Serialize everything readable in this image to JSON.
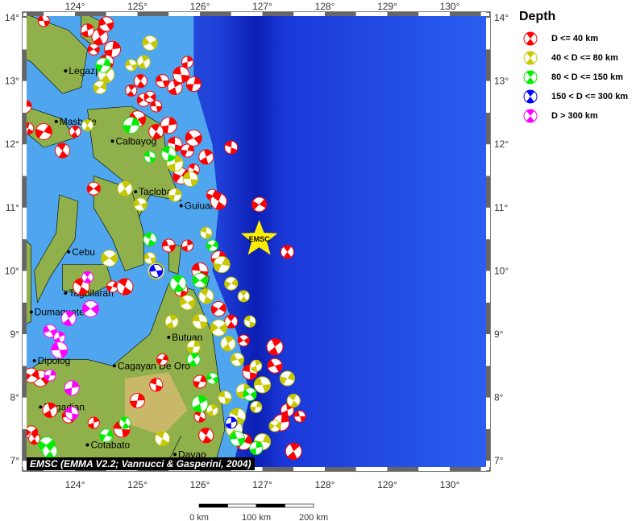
{
  "legend": {
    "title": "Depth",
    "items": [
      {
        "label": "D <= 40 km",
        "color": "#ff0000"
      },
      {
        "label": "40 < D <= 80 km",
        "color": "#c8c800"
      },
      {
        "label": "80 < D <= 150 km",
        "color": "#00ee00"
      },
      {
        "label": "150 < D <= 300 km",
        "color": "#0000ff"
      },
      {
        "label": "D > 300 km",
        "color": "#ff00ff"
      }
    ]
  },
  "credit": "EMSC (EMMA V2.2; Vannucci & Gasperini, 2004)",
  "axes": {
    "lon_ticks": [
      "124°",
      "125°",
      "126°",
      "127°",
      "128°",
      "129°",
      "130°"
    ],
    "lat_ticks": [
      "14°",
      "13°",
      "12°",
      "11°",
      "10°",
      "9°",
      "8°",
      "7°"
    ],
    "lon_values": [
      124,
      125,
      126,
      127,
      128,
      129,
      130
    ],
    "lat_values": [
      14,
      13,
      12,
      11,
      10,
      9,
      8,
      7
    ]
  },
  "scale_bar": {
    "labels": [
      "0 km",
      "100 km",
      "200 km"
    ]
  },
  "marker": {
    "label": "EMSC",
    "lon": 126.95,
    "lat": 10.5,
    "color": "#ffee00"
  },
  "cities": [
    {
      "name": "Legazpi",
      "lon": 123.85,
      "lat": 13.16
    },
    {
      "name": "Masbate",
      "lon": 123.7,
      "lat": 12.36
    },
    {
      "name": "Calbayog",
      "lon": 124.6,
      "lat": 12.05
    },
    {
      "name": "Tacloban",
      "lon": 124.97,
      "lat": 11.25
    },
    {
      "name": "Guiuan",
      "lon": 125.7,
      "lat": 11.03
    },
    {
      "name": "Cebu",
      "lon": 123.9,
      "lat": 10.3
    },
    {
      "name": "Tagbilaran",
      "lon": 123.85,
      "lat": 9.65
    },
    {
      "name": "Dumaguete",
      "lon": 123.3,
      "lat": 9.35
    },
    {
      "name": "Butuan",
      "lon": 125.5,
      "lat": 8.95
    },
    {
      "name": "Dipolog",
      "lon": 123.35,
      "lat": 8.58
    },
    {
      "name": "Cagayan De Oro",
      "lon": 124.63,
      "lat": 8.5
    },
    {
      "name": "Pagadian",
      "lon": 123.45,
      "lat": 7.85
    },
    {
      "name": "Cotabato",
      "lon": 124.2,
      "lat": 7.25
    },
    {
      "name": "Davao",
      "lon": 125.6,
      "lat": 7.1
    }
  ],
  "events_by_depth_class": [
    [
      [
        125.3,
        12.6
      ],
      [
        125.5,
        12.3
      ],
      [
        125.6,
        12.0
      ],
      [
        125.8,
        11.9
      ],
      [
        125.9,
        11.6
      ],
      [
        125.7,
        11.5
      ],
      [
        125.3,
        12.2
      ],
      [
        125.1,
        12.7
      ],
      [
        124.9,
        12.85
      ],
      [
        125.0,
        12.4
      ],
      [
        125.6,
        12.9
      ],
      [
        125.4,
        13.0
      ],
      [
        125.8,
        13.3
      ],
      [
        125.7,
        13.1
      ],
      [
        125.9,
        12.95
      ],
      [
        126.5,
        11.95
      ],
      [
        126.2,
        11.2
      ],
      [
        126.3,
        11.1
      ],
      [
        126.95,
        11.05
      ],
      [
        127.4,
        10.3
      ],
      [
        124.3,
        13.5
      ],
      [
        124.4,
        13.7
      ],
      [
        124.5,
        13.9
      ],
      [
        124.2,
        13.8
      ],
      [
        123.5,
        13.95
      ],
      [
        124.6,
        13.5
      ],
      [
        124.5,
        13.3
      ],
      [
        123.2,
        12.6
      ],
      [
        123.25,
        12.25
      ],
      [
        123.5,
        12.2
      ],
      [
        123.8,
        11.9
      ],
      [
        124.3,
        11.3
      ],
      [
        124.0,
        12.2
      ],
      [
        125.9,
        12.1
      ],
      [
        126.1,
        11.8
      ],
      [
        125.5,
        10.4
      ],
      [
        125.8,
        10.4
      ],
      [
        126.0,
        10.0
      ],
      [
        126.3,
        10.2
      ],
      [
        125.7,
        9.7
      ],
      [
        124.6,
        9.75
      ],
      [
        124.8,
        9.75
      ],
      [
        126.3,
        9.4
      ],
      [
        126.5,
        9.2
      ],
      [
        126.7,
        8.9
      ],
      [
        127.2,
        8.8
      ],
      [
        127.2,
        8.5
      ],
      [
        127.4,
        7.8
      ],
      [
        127.6,
        7.7
      ],
      [
        127.3,
        7.6
      ],
      [
        126.8,
        8.4
      ],
      [
        126.0,
        8.25
      ],
      [
        126.0,
        7.7
      ],
      [
        126.7,
        7.3
      ],
      [
        126.1,
        7.4
      ],
      [
        123.3,
        7.45
      ],
      [
        123.35,
        7.35
      ],
      [
        123.45,
        8.3
      ],
      [
        123.6,
        7.8
      ],
      [
        123.9,
        7.7
      ],
      [
        124.3,
        7.6
      ],
      [
        124.75,
        7.5
      ],
      [
        125.0,
        7.95
      ],
      [
        125.3,
        8.2
      ],
      [
        125.4,
        8.6
      ],
      [
        124.1,
        9.75
      ],
      [
        123.3,
        8.35
      ],
      [
        125.05,
        13.0
      ],
      [
        125.2,
        12.75
      ],
      [
        127.5,
        7.15
      ]
    ],
    [
      [
        124.5,
        13.1
      ],
      [
        125.2,
        13.6
      ],
      [
        125.1,
        13.3
      ],
      [
        124.9,
        13.25
      ],
      [
        125.6,
        11.7
      ],
      [
        125.85,
        11.45
      ],
      [
        125.6,
        11.2
      ],
      [
        126.1,
        10.6
      ],
      [
        126.35,
        10.1
      ],
      [
        126.1,
        9.6
      ],
      [
        126.5,
        9.8
      ],
      [
        126.7,
        9.6
      ],
      [
        126.3,
        9.1
      ],
      [
        126.45,
        8.85
      ],
      [
        126.6,
        8.6
      ],
      [
        126.9,
        8.5
      ],
      [
        127.0,
        8.2
      ],
      [
        126.7,
        8.1
      ],
      [
        126.4,
        8.0
      ],
      [
        126.9,
        7.85
      ],
      [
        126.6,
        7.7
      ],
      [
        127.4,
        8.3
      ],
      [
        127.5,
        7.95
      ],
      [
        127.2,
        7.55
      ],
      [
        126.55,
        7.5
      ],
      [
        125.8,
        9.5
      ],
      [
        125.55,
        9.2
      ],
      [
        125.2,
        10.2
      ],
      [
        125.3,
        10.0
      ],
      [
        126.0,
        9.2
      ],
      [
        125.9,
        8.8
      ],
      [
        126.8,
        9.2
      ],
      [
        127.0,
        7.3
      ],
      [
        125.4,
        7.35
      ],
      [
        124.4,
        12.9
      ],
      [
        124.2,
        12.3
      ],
      [
        124.55,
        10.2
      ],
      [
        124.8,
        11.3
      ],
      [
        125.05,
        11.05
      ],
      [
        126.2,
        7.8
      ]
    ],
    [
      [
        124.45,
        13.25
      ],
      [
        125.2,
        10.5
      ],
      [
        126.2,
        10.4
      ],
      [
        125.65,
        9.8
      ],
      [
        126.0,
        9.85
      ],
      [
        125.9,
        8.6
      ],
      [
        126.2,
        8.3
      ],
      [
        126.0,
        7.9
      ],
      [
        126.6,
        7.35
      ],
      [
        126.9,
        7.2
      ],
      [
        125.2,
        11.8
      ],
      [
        124.9,
        12.3
      ],
      [
        125.5,
        11.85
      ],
      [
        124.5,
        7.4
      ],
      [
        124.8,
        7.6
      ],
      [
        123.55,
        7.25
      ],
      [
        123.6,
        7.15
      ],
      [
        126.8,
        8.05
      ]
    ],
    [
      [
        125.3,
        10.0
      ],
      [
        126.5,
        7.6
      ]
    ],
    [
      [
        124.2,
        9.9
      ],
      [
        124.25,
        9.4
      ],
      [
        123.9,
        9.25
      ],
      [
        123.6,
        9.05
      ],
      [
        123.75,
        8.95
      ],
      [
        123.75,
        8.75
      ],
      [
        123.95,
        8.15
      ],
      [
        123.95,
        7.75
      ],
      [
        123.6,
        8.35
      ]
    ]
  ]
}
